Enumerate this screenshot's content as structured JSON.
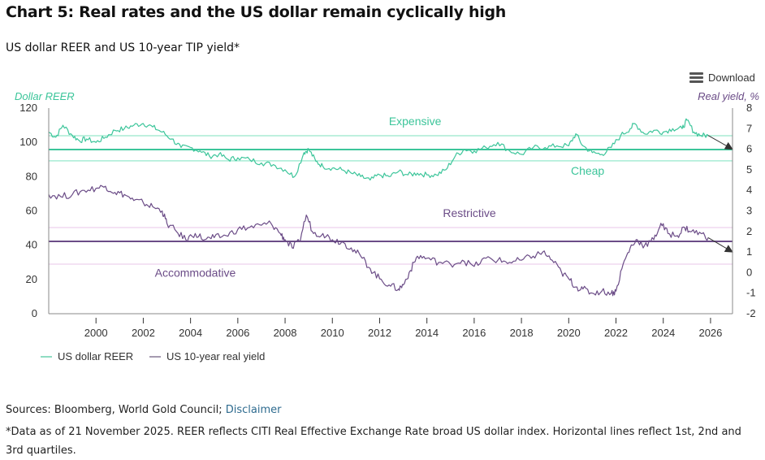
{
  "header": {
    "title": "Chart 5: Real rates and the US dollar remain cyclically high",
    "subtitle": "US dollar REER and US 10-year TIP yield*"
  },
  "toolbar": {
    "download_label": "Download",
    "download_icon": "hamburger-menu-icon"
  },
  "footer": {
    "sources_prefix": "Sources: Bloomberg, World Gold Council; ",
    "disclaimer_link": "Disclaimer",
    "note": "*Data as of 21 November 2025. REER reflects CITI Real Effective Exchange Rate broad US dollar index. Horizontal lines reflect 1st, 2nd and 3rd quartiles."
  },
  "colors": {
    "reer": "#3cc59a",
    "reer_quartile": "#a8ecd4",
    "yield": "#6b4c87",
    "yield_quartile": "#f0d8f0",
    "axis": "#888888",
    "arrow": "#333333"
  },
  "chart_data": {
    "type": "line",
    "title": "US dollar REER and US 10-year TIP yield*",
    "xlabel": "",
    "x_ticks": [
      "2000",
      "2002",
      "2004",
      "2006",
      "2008",
      "2010",
      "2012",
      "2014",
      "2016",
      "2018",
      "2020",
      "2022",
      "2024",
      "2026"
    ],
    "xlim": [
      1998.0,
      2026.93
    ],
    "y_left": {
      "label": "Dollar REER",
      "ylim": [
        0,
        120
      ],
      "ticks": [
        "0",
        "20",
        "40",
        "60",
        "80",
        "100",
        "120"
      ]
    },
    "y_right": {
      "label": "Real yield, %",
      "ylim": [
        -2,
        8
      ],
      "ticks": [
        "-2",
        "-1",
        "0",
        "1",
        "2",
        "3",
        "4",
        "5",
        "6",
        "7",
        "8"
      ]
    },
    "grid": false,
    "legend_position": "bottom-left",
    "series": [
      {
        "name": "US dollar REER",
        "axis": "left",
        "x": [
          1998.0,
          1998.3,
          1998.6,
          1999.0,
          1999.3,
          1999.6,
          2000.0,
          2000.4,
          2000.8,
          2001.2,
          2001.6,
          2002.0,
          2002.4,
          2002.8,
          2003.2,
          2003.6,
          2004.0,
          2004.4,
          2004.8,
          2005.2,
          2005.6,
          2006.0,
          2006.5,
          2007.0,
          2007.5,
          2008.0,
          2008.4,
          2008.8,
          2009.0,
          2009.3,
          2009.6,
          2010.0,
          2010.4,
          2010.8,
          2011.2,
          2011.6,
          2012.0,
          2012.4,
          2012.8,
          2013.2,
          2013.6,
          2014.0,
          2014.4,
          2014.8,
          2015.2,
          2015.6,
          2016.0,
          2016.5,
          2017.0,
          2017.5,
          2018.0,
          2018.5,
          2019.0,
          2019.5,
          2020.0,
          2020.3,
          2020.6,
          2021.0,
          2021.4,
          2021.8,
          2022.2,
          2022.6,
          2022.8,
          2023.2,
          2023.6,
          2024.0,
          2024.4,
          2024.8,
          2025.0,
          2025.3,
          2025.6,
          2025.9
        ],
        "values": [
          106,
          103,
          110,
          104,
          101,
          102,
          100,
          103,
          107,
          108,
          110,
          111,
          109,
          106,
          102,
          97,
          97,
          95,
          92,
          93,
          90,
          91,
          90,
          88,
          87,
          84,
          80,
          94,
          96,
          89,
          86,
          85,
          84,
          82,
          80,
          78,
          81,
          80,
          83,
          81,
          82,
          81,
          81,
          84,
          92,
          96,
          95,
          97,
          100,
          95,
          93,
          97,
          97,
          98,
          98,
          105,
          98,
          94,
          93,
          97,
          104,
          108,
          111,
          105,
          107,
          106,
          108,
          108,
          113,
          106,
          104,
          104
        ]
      },
      {
        "name": "US 10-year real yield",
        "axis": "right",
        "x": [
          1998.0,
          1998.5,
          1999.0,
          1999.5,
          2000.0,
          2000.4,
          2000.8,
          2001.2,
          2001.6,
          2002.0,
          2002.4,
          2002.8,
          2003.0,
          2003.4,
          2003.8,
          2004.2,
          2004.6,
          2005.0,
          2005.5,
          2006.0,
          2006.5,
          2007.0,
          2007.4,
          2007.8,
          2008.0,
          2008.3,
          2008.6,
          2008.9,
          2009.2,
          2009.6,
          2010.0,
          2010.4,
          2010.8,
          2011.2,
          2011.6,
          2012.0,
          2012.4,
          2012.8,
          2013.0,
          2013.3,
          2013.6,
          2014.0,
          2014.5,
          2015.0,
          2015.5,
          2016.0,
          2016.5,
          2017.0,
          2017.5,
          2018.0,
          2018.5,
          2018.9,
          2019.3,
          2019.7,
          2020.0,
          2020.3,
          2020.6,
          2021.0,
          2021.4,
          2021.8,
          2022.0,
          2022.3,
          2022.6,
          2022.9,
          2023.2,
          2023.6,
          2023.9,
          2024.2,
          2024.6,
          2024.9,
          2025.2,
          2025.6,
          2025.9
        ],
        "values": [
          3.8,
          3.7,
          3.8,
          4.0,
          4.1,
          4.2,
          3.9,
          3.8,
          3.5,
          3.4,
          3.2,
          3.0,
          2.4,
          2.0,
          1.6,
          1.9,
          1.6,
          1.7,
          1.8,
          2.1,
          2.2,
          2.3,
          2.4,
          1.9,
          1.6,
          1.2,
          1.5,
          2.8,
          1.9,
          1.9,
          1.6,
          1.5,
          1.2,
          0.8,
          0.2,
          -0.3,
          -0.6,
          -0.8,
          -0.6,
          0.1,
          0.8,
          0.7,
          0.5,
          0.4,
          0.6,
          0.3,
          0.7,
          0.6,
          0.5,
          0.6,
          0.8,
          1.0,
          0.6,
          0.0,
          -0.3,
          -0.7,
          -0.8,
          -1.0,
          -0.9,
          -1.0,
          -0.9,
          0.4,
          1.2,
          1.6,
          1.3,
          1.6,
          2.4,
          1.9,
          1.8,
          2.2,
          2.0,
          1.9,
          1.7
        ]
      }
    ],
    "quartile_lines": {
      "reer": {
        "q1": 89.2,
        "median": 95.8,
        "q3": 103.9
      },
      "real_yield": {
        "q1": 0.41,
        "median": 1.52,
        "q3": 2.19
      }
    },
    "annotations": [
      {
        "text": "Expensive",
        "series": "US dollar REER",
        "x": 2013.5,
        "y": 110
      },
      {
        "text": "Cheap",
        "series": "US dollar REER",
        "x": 2020.8,
        "y": 81
      },
      {
        "text": "Restrictive",
        "series": "US 10-year real yield",
        "x": 2015.8,
        "y": 2.7
      },
      {
        "text": "Accommodative",
        "series": "US 10-year real yield",
        "x": 2004.2,
        "y": -0.2
      }
    ],
    "trend_arrows": [
      {
        "series": "US dollar REER",
        "from": {
          "x": 2025.9,
          "y": 104
        },
        "to": {
          "x": 2026.93,
          "y": 96
        }
      },
      {
        "series": "US 10-year real yield",
        "from": {
          "x": 2025.9,
          "y": 1.7
        },
        "to": {
          "x": 2026.93,
          "y": 1.0
        }
      }
    ]
  }
}
